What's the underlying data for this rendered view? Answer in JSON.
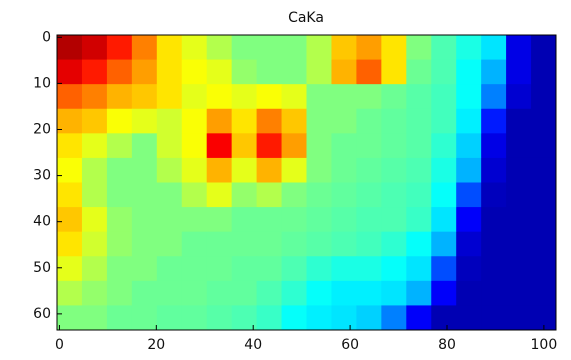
{
  "chart_data": {
    "type": "heatmap",
    "title": "CaKa",
    "colormap": "jet",
    "xlim": [
      -0.5,
      102.5
    ],
    "ylim": [
      63.5,
      -0.5
    ],
    "xticks": [
      0,
      20,
      40,
      60,
      80,
      100
    ],
    "yticks": [
      0,
      10,
      20,
      30,
      40,
      50,
      60
    ],
    "z": [
      [
        0.95,
        0.92,
        0.85,
        0.75,
        0.65,
        0.6,
        0.55,
        0.5,
        0.5,
        0.5,
        0.55,
        0.68,
        0.72,
        0.65,
        0.5,
        0.45,
        0.4,
        0.35,
        0.1,
        0.05
      ],
      [
        0.9,
        0.85,
        0.78,
        0.72,
        0.65,
        0.62,
        0.6,
        0.52,
        0.5,
        0.5,
        0.55,
        0.7,
        0.78,
        0.65,
        0.48,
        0.45,
        0.38,
        0.3,
        0.1,
        0.05
      ],
      [
        0.78,
        0.75,
        0.7,
        0.68,
        0.65,
        0.6,
        0.62,
        0.6,
        0.62,
        0.6,
        0.5,
        0.5,
        0.5,
        0.48,
        0.46,
        0.44,
        0.38,
        0.25,
        0.08,
        0.05
      ],
      [
        0.7,
        0.68,
        0.62,
        0.6,
        0.58,
        0.62,
        0.72,
        0.65,
        0.75,
        0.68,
        0.5,
        0.5,
        0.48,
        0.47,
        0.46,
        0.44,
        0.36,
        0.15,
        0.05,
        0.05
      ],
      [
        0.65,
        0.6,
        0.55,
        0.5,
        0.58,
        0.62,
        0.88,
        0.68,
        0.85,
        0.72,
        0.5,
        0.48,
        0.48,
        0.47,
        0.46,
        0.42,
        0.33,
        0.1,
        0.05,
        0.05
      ],
      [
        0.62,
        0.55,
        0.5,
        0.5,
        0.55,
        0.6,
        0.7,
        0.6,
        0.7,
        0.6,
        0.5,
        0.48,
        0.47,
        0.46,
        0.45,
        0.4,
        0.3,
        0.08,
        0.05,
        0.05
      ],
      [
        0.65,
        0.55,
        0.5,
        0.5,
        0.5,
        0.55,
        0.6,
        0.52,
        0.55,
        0.5,
        0.48,
        0.47,
        0.46,
        0.45,
        0.44,
        0.38,
        0.2,
        0.06,
        0.05,
        0.05
      ],
      [
        0.68,
        0.6,
        0.52,
        0.5,
        0.5,
        0.5,
        0.5,
        0.48,
        0.48,
        0.48,
        0.47,
        0.46,
        0.45,
        0.45,
        0.43,
        0.35,
        0.12,
        0.05,
        0.05,
        0.05
      ],
      [
        0.65,
        0.58,
        0.52,
        0.5,
        0.5,
        0.48,
        0.48,
        0.48,
        0.48,
        0.47,
        0.46,
        0.45,
        0.44,
        0.42,
        0.38,
        0.3,
        0.08,
        0.05,
        0.05,
        0.05
      ],
      [
        0.6,
        0.55,
        0.5,
        0.5,
        0.48,
        0.48,
        0.48,
        0.47,
        0.47,
        0.45,
        0.42,
        0.4,
        0.4,
        0.38,
        0.35,
        0.2,
        0.06,
        0.05,
        0.05,
        0.05
      ],
      [
        0.55,
        0.52,
        0.5,
        0.48,
        0.48,
        0.48,
        0.47,
        0.47,
        0.45,
        0.42,
        0.38,
        0.36,
        0.36,
        0.35,
        0.3,
        0.12,
        0.05,
        0.05,
        0.05,
        0.05
      ],
      [
        0.5,
        0.5,
        0.48,
        0.48,
        0.47,
        0.47,
        0.46,
        0.45,
        0.43,
        0.38,
        0.36,
        0.35,
        0.33,
        0.25,
        0.12,
        0.05,
        0.05,
        0.05,
        0.05,
        0.05
      ]
    ]
  }
}
